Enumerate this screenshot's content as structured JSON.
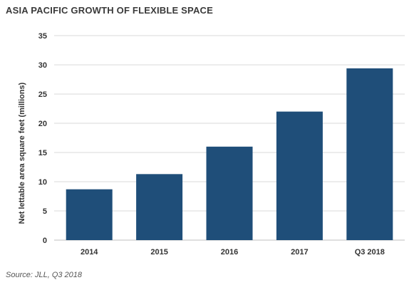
{
  "title": "ASIA PACIFIC GROWTH OF FLEXIBLE SPACE",
  "source": "Source: JLL, Q3 2018",
  "chart_data": {
    "type": "bar",
    "categories": [
      "2014",
      "2015",
      "2016",
      "2017",
      "Q3 2018"
    ],
    "values": [
      8.7,
      11.3,
      16.0,
      22.0,
      29.4
    ],
    "xlabel": "",
    "ylabel": "Net lettable area square feet (millions)",
    "ylim": [
      0,
      35
    ],
    "yticks": [
      0,
      5,
      10,
      15,
      20,
      25,
      30,
      35
    ],
    "grid": true,
    "bar_color": "#1f4e79",
    "grid_color": "#d9d9d9"
  }
}
